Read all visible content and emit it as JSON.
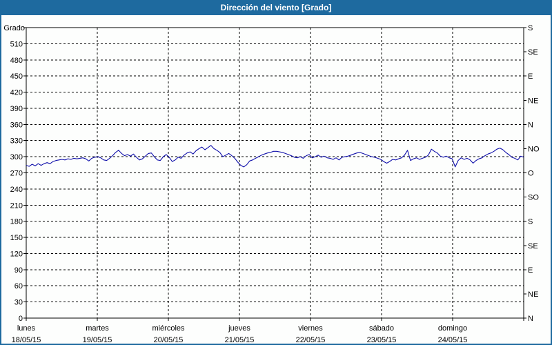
{
  "window": {
    "title": "Dirección del viento [Grado]"
  },
  "colors": {
    "titlebar_bg": "#1e6a9f",
    "titlebar_text": "#ffffff",
    "window_border": "#1e6a9f",
    "plot_bg": "#fdfefd",
    "axis": "#000000",
    "grid": "#000000",
    "line": "#0f0faa"
  },
  "chart_data": {
    "type": "line",
    "title": "Dirección del viento [Grado]",
    "y_axis_title": "Grado",
    "ylim": [
      0,
      540
    ],
    "y_tick_step_left": 30,
    "y_left_tick_labels": [
      0,
      30,
      60,
      90,
      120,
      150,
      180,
      210,
      240,
      270,
      300,
      330,
      360,
      390,
      420,
      450,
      480,
      510
    ],
    "y_right_ticks": [
      {
        "deg": 0,
        "label": "N"
      },
      {
        "deg": 45,
        "label": "NE"
      },
      {
        "deg": 90,
        "label": "E"
      },
      {
        "deg": 135,
        "label": "SE"
      },
      {
        "deg": 180,
        "label": "S"
      },
      {
        "deg": 225,
        "label": "SO"
      },
      {
        "deg": 270,
        "label": "O"
      },
      {
        "deg": 315,
        "label": "NO"
      },
      {
        "deg": 360,
        "label": "N"
      },
      {
        "deg": 405,
        "label": "NE"
      },
      {
        "deg": 450,
        "label": "E"
      },
      {
        "deg": 495,
        "label": "SE"
      },
      {
        "deg": 540,
        "label": "S"
      }
    ],
    "x_days": [
      {
        "weekday": "lunes",
        "date": "18/05/15"
      },
      {
        "weekday": "martes",
        "date": "19/05/15"
      },
      {
        "weekday": "miércoles",
        "date": "20/05/15"
      },
      {
        "weekday": "jueves",
        "date": "21/05/15"
      },
      {
        "weekday": "viernes",
        "date": "22/05/15"
      },
      {
        "weekday": "sábado",
        "date": "23/05/15"
      },
      {
        "weekday": "domingo",
        "date": "24/05/15"
      }
    ],
    "grid": {
      "horizontal": "dashed",
      "vertical": "dashed"
    },
    "legend": "none",
    "series": [
      {
        "name": "Dirección del viento",
        "unit": "Grado",
        "x_unit": "hours (hourly samples, 7 days)",
        "values": [
          284,
          282,
          286,
          283,
          287,
          284,
          287,
          289,
          287,
          291,
          293,
          294,
          295,
          294,
          296,
          295,
          297,
          296,
          297,
          298,
          296,
          292,
          297,
          299,
          300,
          298,
          294,
          293,
          297,
          302,
          308,
          312,
          306,
          302,
          304,
          301,
          305,
          299,
          294,
          296,
          301,
          306,
          307,
          300,
          294,
          293,
          300,
          304,
          299,
          291,
          294,
          299,
          297,
          303,
          307,
          309,
          305,
          311,
          315,
          318,
          313,
          317,
          321,
          315,
          312,
          308,
          300,
          303,
          306,
          302,
          297,
          290,
          284,
          281,
          285,
          292,
          294,
          297,
          300,
          303,
          305,
          307,
          308,
          310,
          310,
          309,
          308,
          306,
          304,
          302,
          299,
          298,
          300,
          297,
          302,
          304,
          298,
          300,
          303,
          299,
          301,
          298,
          297,
          295,
          298,
          294,
          299,
          300,
          301,
          303,
          305,
          307,
          308,
          306,
          304,
          302,
          300,
          299,
          297,
          295,
          291,
          288,
          291,
          295,
          294,
          296,
          298,
          303,
          312,
          293,
          296,
          298,
          295,
          297,
          299,
          303,
          314,
          310,
          307,
          301,
          299,
          301,
          298,
          296,
          281,
          293,
          298,
          295,
          297,
          294,
          288,
          293,
          296,
          298,
          302,
          305,
          307,
          310,
          314,
          316,
          313,
          308,
          304,
          299,
          297,
          294,
          301,
          299
        ]
      }
    ]
  }
}
